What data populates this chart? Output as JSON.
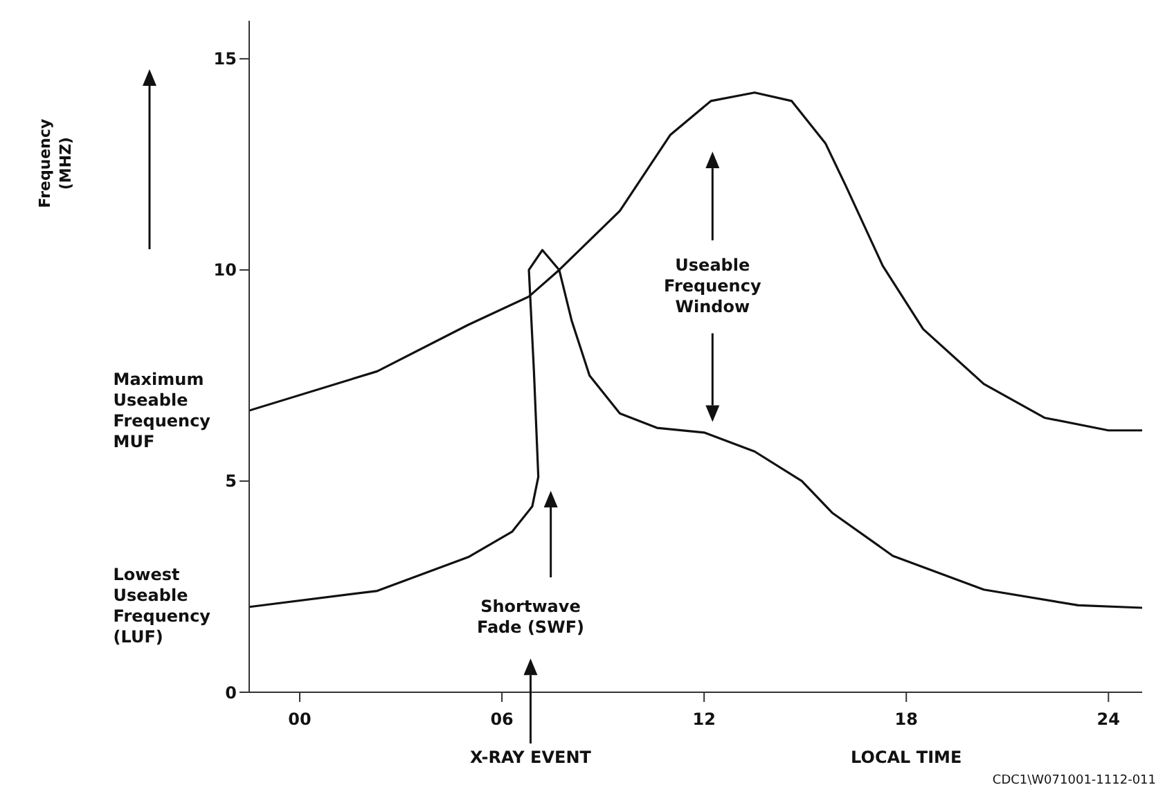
{
  "chart_data": {
    "type": "line",
    "xlabel": "LOCAL TIME",
    "xlim": [
      -1.5,
      25
    ],
    "xticks": [
      {
        "value": 0,
        "label": "00"
      },
      {
        "value": 6,
        "label": "06"
      },
      12,
      18,
      24
    ],
    "ylim": [
      0,
      15.9
    ],
    "yticks": [
      0,
      5,
      10,
      15
    ],
    "marker": "none",
    "line_style": "solid",
    "series": [
      {
        "name": "Maximum Useable Frequency MUF",
        "color": "#111111",
        "x": [
          -1.5,
          2.3,
          5,
          6.8,
          7.7,
          9.5,
          11,
          12.2,
          13.5,
          14.6,
          15.6,
          16.2,
          17.3,
          18.5,
          20.3,
          22.1,
          24,
          25
        ],
        "values": [
          6.67,
          7.6,
          8.7,
          9.37,
          10,
          11.4,
          13.2,
          14,
          14.2,
          14,
          13,
          12,
          10.1,
          8.6,
          7.3,
          6.5,
          6.2,
          6.2
        ]
      },
      {
        "name": "Lowest Useable Frequency (LUF)",
        "color": "#111111",
        "x": [
          -1.5,
          2.3,
          5,
          6.3,
          6.9,
          7.08,
          6.95,
          6.8,
          7.2,
          7.7,
          8.07,
          8.6,
          9.5,
          10.6,
          12,
          13.5,
          14.9,
          15.8,
          17.6,
          20.3,
          23.1,
          25
        ],
        "values": [
          2.02,
          2.4,
          3.2,
          3.8,
          4.4,
          5.1,
          7.6,
          10,
          10.47,
          10,
          8.8,
          7.5,
          6.6,
          6.26,
          6.15,
          5.7,
          5,
          4.25,
          3.23,
          2.43,
          2.06,
          2
        ]
      }
    ],
    "annotations": [
      "Frequency (MHZ)",
      "Useable Frequency Window",
      "Shortwave Fade (SWF)",
      "X-RAY EVENT",
      "CDC1\\W071001-1112-011"
    ]
  }
}
